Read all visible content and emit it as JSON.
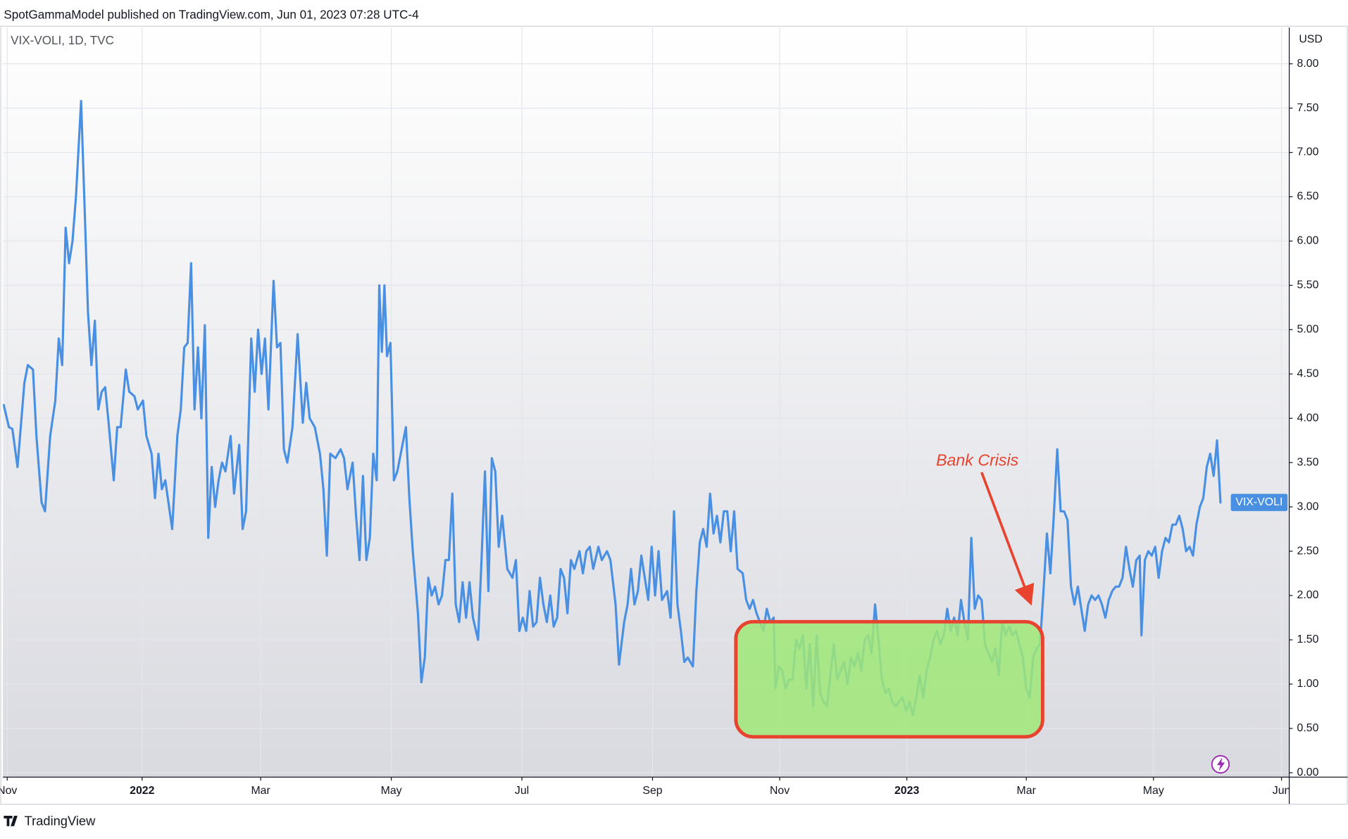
{
  "header": "SpotGammaModel published on TradingView.com, Jun 01, 2023 07:28 UTC-4",
  "footer": "TradingView",
  "chart_data": {
    "type": "line",
    "legend": "VIX-VOLI, 1D, TVC",
    "y_unit": "USD",
    "annotation": "Bank Crisis",
    "grid": true,
    "xlim": [
      0.75,
      375
    ],
    "xticks": [
      {
        "value": 2,
        "label": "Nov"
      },
      {
        "value": 41.25,
        "label": "2022"
      },
      {
        "value": 75.75,
        "label": "Mar"
      },
      {
        "value": 113.75,
        "label": "May"
      },
      {
        "value": 151.75,
        "label": "Jul"
      },
      {
        "value": 189.75,
        "label": "Sep"
      },
      {
        "value": 226.75,
        "label": "Nov"
      },
      {
        "value": 263.75,
        "label": "2023"
      },
      {
        "value": 298.5,
        "label": "Mar"
      },
      {
        "value": 335.5,
        "label": "May"
      },
      {
        "value": 372.75,
        "label": "Jun"
      }
    ],
    "ylim": [
      -0.05,
      8.41
    ],
    "yticks": [
      {
        "value": 0,
        "label": "0.00"
      },
      {
        "value": 0.5,
        "label": "0.50"
      },
      {
        "value": 1,
        "label": "1.00"
      },
      {
        "value": 1.5,
        "label": "1.50"
      },
      {
        "value": 2,
        "label": "2.00"
      },
      {
        "value": 2.5,
        "label": "2.50"
      },
      {
        "value": 3,
        "label": "3.00"
      },
      {
        "value": 3.5,
        "label": "3.50"
      },
      {
        "value": 4,
        "label": "4.00"
      },
      {
        "value": 4.5,
        "label": "4.50"
      },
      {
        "value": 5,
        "label": "5.00"
      },
      {
        "value": 5.5,
        "label": "5.50"
      },
      {
        "value": 6,
        "label": "6.00"
      },
      {
        "value": 6.5,
        "label": "6.50"
      },
      {
        "value": 7,
        "label": "7.00"
      },
      {
        "value": 7.5,
        "label": "7.50"
      },
      {
        "value": 8,
        "label": "8.00"
      }
    ],
    "x": [
      1,
      2.5,
      3.5,
      5,
      7,
      8,
      9.5,
      10.5,
      12,
      13,
      14.5,
      16,
      17,
      18,
      19,
      20,
      21,
      22,
      23.5,
      24.5,
      25.5,
      26.5,
      27.5,
      28.5,
      29.5,
      30.5,
      31.5,
      33,
      34,
      35,
      36.5,
      37.5,
      39,
      40,
      41.5,
      42.5,
      44,
      45,
      46,
      47,
      48,
      50,
      51.5,
      52.5,
      53.5,
      54.5,
      55.5,
      56.5,
      57.5,
      58.5,
      59.5,
      60.5,
      61.5,
      62.5,
      63.5,
      64.5,
      65.5,
      67,
      68,
      69.5,
      70.5,
      71.5,
      73,
      74,
      75,
      76,
      77,
      78,
      79.5,
      80.5,
      81.5,
      82.5,
      83.5,
      85,
      86.5,
      88,
      89,
      90,
      91.5,
      93,
      94,
      95,
      96,
      97.5,
      99,
      100,
      101,
      102.5,
      103.5,
      104.5,
      105.5,
      106.5,
      107.5,
      108.5,
      109.5,
      110.25,
      111,
      111.75,
      112.5,
      113.5,
      114.5,
      115.5,
      116.5,
      118,
      119,
      120,
      121.5,
      122.5,
      123.5,
      124.5,
      125.5,
      126.5,
      127.5,
      128.5,
      129.5,
      130.5,
      131.5,
      132.5,
      133.5,
      134.5,
      135.5,
      136.5,
      137.5,
      139,
      140,
      141,
      142,
      143,
      144,
      145,
      146,
      147.5,
      149,
      150,
      151,
      152,
      153,
      154,
      155,
      156,
      157,
      158,
      159,
      160,
      161,
      162,
      163,
      164,
      165,
      166,
      167,
      168.5,
      169.5,
      170.5,
      171.5,
      172.5,
      174,
      175,
      176.5,
      177.5,
      179,
      180,
      181.5,
      182.5,
      183.5,
      184.5,
      185.5,
      186.5,
      187.5,
      188.5,
      189.5,
      190.5,
      191.5,
      192.5,
      194,
      195,
      196,
      197,
      198,
      199,
      200,
      201.5,
      202.5,
      203.5,
      204.5,
      205.5,
      206.5,
      207.5,
      208.5,
      209.5,
      210.5,
      211.5,
      212.5,
      213.5,
      214.5,
      216,
      217,
      218,
      219,
      220,
      221,
      222,
      223,
      224,
      225,
      225.5,
      226.5,
      227.5,
      228.5,
      229.5,
      230.5,
      231.5,
      232.5,
      233.5,
      234.5,
      235.5,
      236.5,
      237.5,
      238.5,
      239.5,
      240.5,
      241.5,
      242.5,
      243.5,
      244.5,
      245.5,
      246.5,
      247.5,
      248.5,
      249.5,
      250.5,
      251.5,
      252.5,
      253.5,
      254.5,
      255.5,
      256.5,
      257.5,
      258.5,
      259.5,
      260.5,
      261.5,
      262.5,
      263.5,
      264.5,
      265.5,
      266.5,
      267.5,
      268.5,
      269.5,
      270.5,
      271.5,
      272.5,
      273.5,
      274.5,
      275.5,
      276.5,
      277.5,
      278.5,
      279.5,
      280.5,
      281.5,
      282.5,
      283.5,
      284.5,
      285.5,
      286.5,
      287.5,
      288.5,
      289.5,
      290.5,
      291.5,
      292.5,
      293.5,
      294.5,
      295.5,
      296.5,
      297.5,
      298.5,
      299.5,
      300.5,
      301.5,
      302.5,
      303.5,
      304.5,
      305.5,
      306.5,
      307.5,
      308.5,
      309.5,
      310.5,
      311.5,
      312.5,
      313.5,
      314.5,
      315.5,
      316.5,
      317.5,
      318.5,
      319.5,
      320.5,
      321.5,
      322.5,
      323.5,
      324.5,
      325.5,
      326.5,
      327.5,
      328.5,
      329.5,
      330.5,
      331.5,
      332,
      333,
      334,
      335,
      336,
      337,
      338,
      339,
      340,
      341,
      342,
      343,
      344,
      345,
      346,
      347,
      348,
      349,
      350,
      351,
      352,
      353,
      354,
      355
    ],
    "series": [
      {
        "name": "VIX-VOLI",
        "color": "#4a90e2",
        "values": [
          4.15,
          3.9,
          3.88,
          3.45,
          4.4,
          4.6,
          4.55,
          3.8,
          3.05,
          2.95,
          3.8,
          4.2,
          4.9,
          4.6,
          6.15,
          5.75,
          6.0,
          6.5,
          7.58,
          6.4,
          5.2,
          4.6,
          5.1,
          4.1,
          4.3,
          4.35,
          3.95,
          3.3,
          3.9,
          3.9,
          4.55,
          4.3,
          4.25,
          4.1,
          4.2,
          3.8,
          3.6,
          3.1,
          3.6,
          3.2,
          3.3,
          2.75,
          3.8,
          4.1,
          4.8,
          4.85,
          5.75,
          4.1,
          4.8,
          4.0,
          5.05,
          2.65,
          3.45,
          3.0,
          3.3,
          3.5,
          3.4,
          3.8,
          3.15,
          3.7,
          2.75,
          2.95,
          4.9,
          4.3,
          5.0,
          4.5,
          4.9,
          4.1,
          5.55,
          4.8,
          4.85,
          3.65,
          3.5,
          3.9,
          4.95,
          3.95,
          4.4,
          4.0,
          3.9,
          3.6,
          3.2,
          2.45,
          3.6,
          3.55,
          3.65,
          3.55,
          3.2,
          3.5,
          2.9,
          2.4,
          3.35,
          2.4,
          2.65,
          3.6,
          3.3,
          5.5,
          4.75,
          5.5,
          4.7,
          4.85,
          3.3,
          3.4,
          3.6,
          3.9,
          3.1,
          2.5,
          1.8,
          1.02,
          1.3,
          2.2,
          2.0,
          2.1,
          1.9,
          2.0,
          2.4,
          2.4,
          3.15,
          1.9,
          1.7,
          2.15,
          1.75,
          2.15,
          1.75,
          1.5,
          2.4,
          3.4,
          2.05,
          3.55,
          3.4,
          2.55,
          2.9,
          2.3,
          2.2,
          2.4,
          1.6,
          1.75,
          1.6,
          2.05,
          1.65,
          1.7,
          2.2,
          1.9,
          1.7,
          2.0,
          1.65,
          1.75,
          2.3,
          2.2,
          1.8,
          2.4,
          2.3,
          2.5,
          2.25,
          2.5,
          2.55,
          2.3,
          2.55,
          2.4,
          2.5,
          2.4,
          1.9,
          1.22,
          1.7,
          1.9,
          2.3,
          1.9,
          2.05,
          2.45,
          2.2,
          1.95,
          2.55,
          2.0,
          2.5,
          1.95,
          2.05,
          1.75,
          2.95,
          1.9,
          1.6,
          1.25,
          1.3,
          1.2,
          2.05,
          2.6,
          2.75,
          2.55,
          3.15,
          2.7,
          2.9,
          2.6,
          2.95,
          2.95,
          2.5,
          2.95,
          2.3,
          2.25,
          1.95,
          1.85,
          1.95,
          1.8,
          1.7,
          1.6,
          1.85,
          1.7,
          1.75,
          0.95,
          1.2,
          1.15,
          0.95,
          1.05,
          1.05,
          1.5,
          1.4,
          1.55,
          0.95,
          1.45,
          0.75,
          1.55,
          0.9,
          0.8,
          0.75,
          1.1,
          1.45,
          1.05,
          1.15,
          1.25,
          1.0,
          1.3,
          1.2,
          1.35,
          1.15,
          1.5,
          1.55,
          1.35,
          1.9,
          1.5,
          1.05,
          0.9,
          0.95,
          0.8,
          0.75,
          0.8,
          0.85,
          0.7,
          0.8,
          0.65,
          0.85,
          1.1,
          0.85,
          1.15,
          1.3,
          1.5,
          1.6,
          1.45,
          1.55,
          1.85,
          1.6,
          1.75,
          1.55,
          1.95,
          1.7,
          1.5,
          2.65,
          1.85,
          2.0,
          1.95,
          1.45,
          1.35,
          1.25,
          1.4,
          1.1,
          1.7,
          1.55,
          1.65,
          1.55,
          1.6,
          1.45,
          1.3,
          0.95,
          0.85,
          1.3,
          1.4,
          1.45,
          2.05,
          2.7,
          2.25,
          2.9,
          3.65,
          2.95,
          2.95,
          2.85,
          2.1,
          1.9,
          2.1,
          1.85,
          1.6,
          1.9,
          2.0,
          1.95,
          2.0,
          1.9,
          1.75,
          1.95,
          2.05,
          2.1,
          2.1,
          2.2,
          2.55,
          2.3,
          2.1,
          2.4,
          2.45,
          1.55,
          2.4,
          2.5,
          2.45,
          2.55,
          2.2,
          2.5,
          2.65,
          2.6,
          2.8,
          2.8,
          2.9,
          2.75,
          2.5,
          2.55,
          2.45,
          2.8,
          3.0,
          3.1,
          3.45,
          3.6,
          3.35,
          3.75,
          3.05
        ]
      }
    ]
  }
}
